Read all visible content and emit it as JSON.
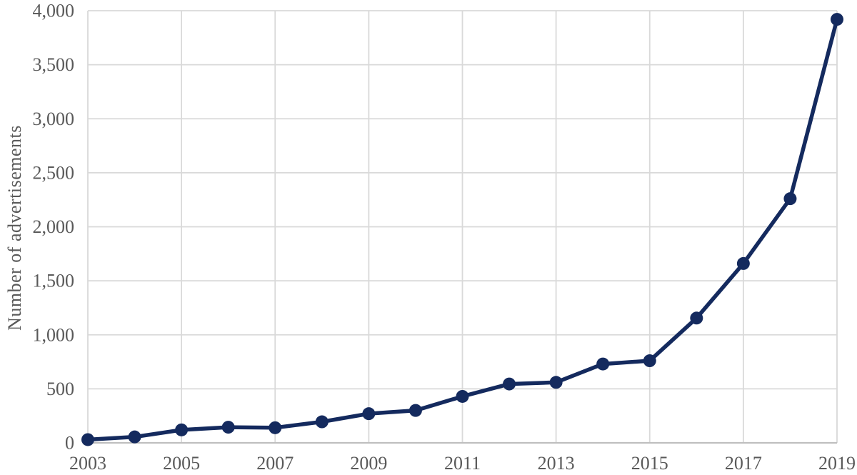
{
  "chart_data": {
    "type": "line",
    "title": "",
    "xlabel": "",
    "ylabel": "Number of advertisements",
    "x": [
      2003,
      2004,
      2005,
      2006,
      2007,
      2008,
      2009,
      2010,
      2011,
      2012,
      2013,
      2014,
      2015,
      2016,
      2017,
      2018,
      2019
    ],
    "series": [
      {
        "name": "Number of advertisements",
        "values": [
          30,
          55,
          120,
          145,
          140,
          195,
          270,
          300,
          430,
          545,
          560,
          730,
          760,
          1155,
          1660,
          2260,
          3920
        ]
      }
    ],
    "xticks": [
      2003,
      2005,
      2007,
      2009,
      2011,
      2013,
      2015,
      2017,
      2019
    ],
    "xtick_labels": [
      "2003",
      "2005",
      "2007",
      "2009",
      "2011",
      "2013",
      "2015",
      "2017",
      "2019"
    ],
    "yticks": [
      0,
      500,
      1000,
      1500,
      2000,
      2500,
      3000,
      3500,
      4000
    ],
    "ytick_labels": [
      "0",
      "500",
      "1,000",
      "1,500",
      "2,000",
      "2,500",
      "3,000",
      "3,500",
      "4,000"
    ],
    "ylim": [
      0,
      4000
    ],
    "grid": true,
    "legend_position": "none",
    "marker": "circle",
    "colors": {
      "line": "#142A5E",
      "marker": "#142A5E",
      "gridline": "#D9D9D9",
      "axis_line": "#BFBFBF",
      "tick_label": "#595959",
      "background": "#FFFFFF"
    }
  }
}
